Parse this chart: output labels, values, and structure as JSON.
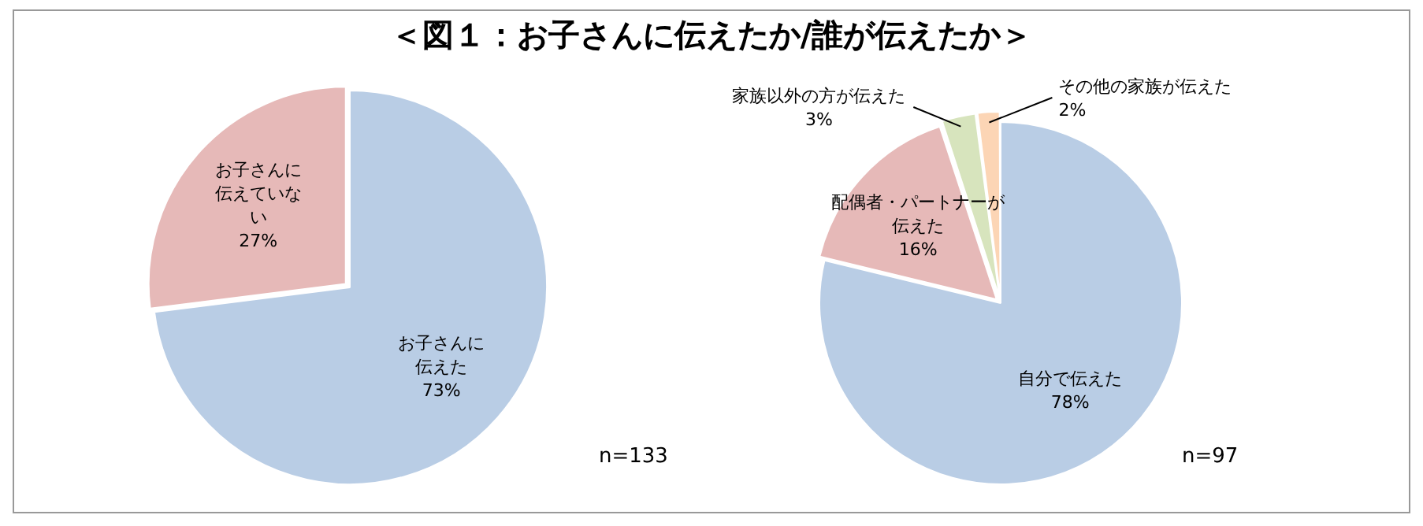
{
  "chart_data": [
    {
      "type": "pie",
      "title": "＜図１：お子さんに伝えたか/誰が伝えたか＞",
      "categories": [
        "お子さんに伝えた",
        "お子さんに伝えていない"
      ],
      "values": [
        73,
        27
      ],
      "colors": [
        "#b9cde5",
        "#e6b9b8"
      ],
      "value_labels": [
        "73%",
        "27%"
      ],
      "annotations": [
        "n=133"
      ]
    },
    {
      "type": "pie",
      "categories": [
        "自分で伝えた",
        "配偶者・パートナーが伝えた",
        "家族以外の方が伝えた",
        "その他の家族が伝えた"
      ],
      "values": [
        78,
        16,
        3,
        2
      ],
      "colors": [
        "#b9cde5",
        "#e6b9b8",
        "#d7e4bd",
        "#fcd5b5"
      ],
      "value_labels": [
        "78%",
        "16%",
        "3%",
        "2%"
      ],
      "annotations": [
        "n=97"
      ]
    }
  ]
}
